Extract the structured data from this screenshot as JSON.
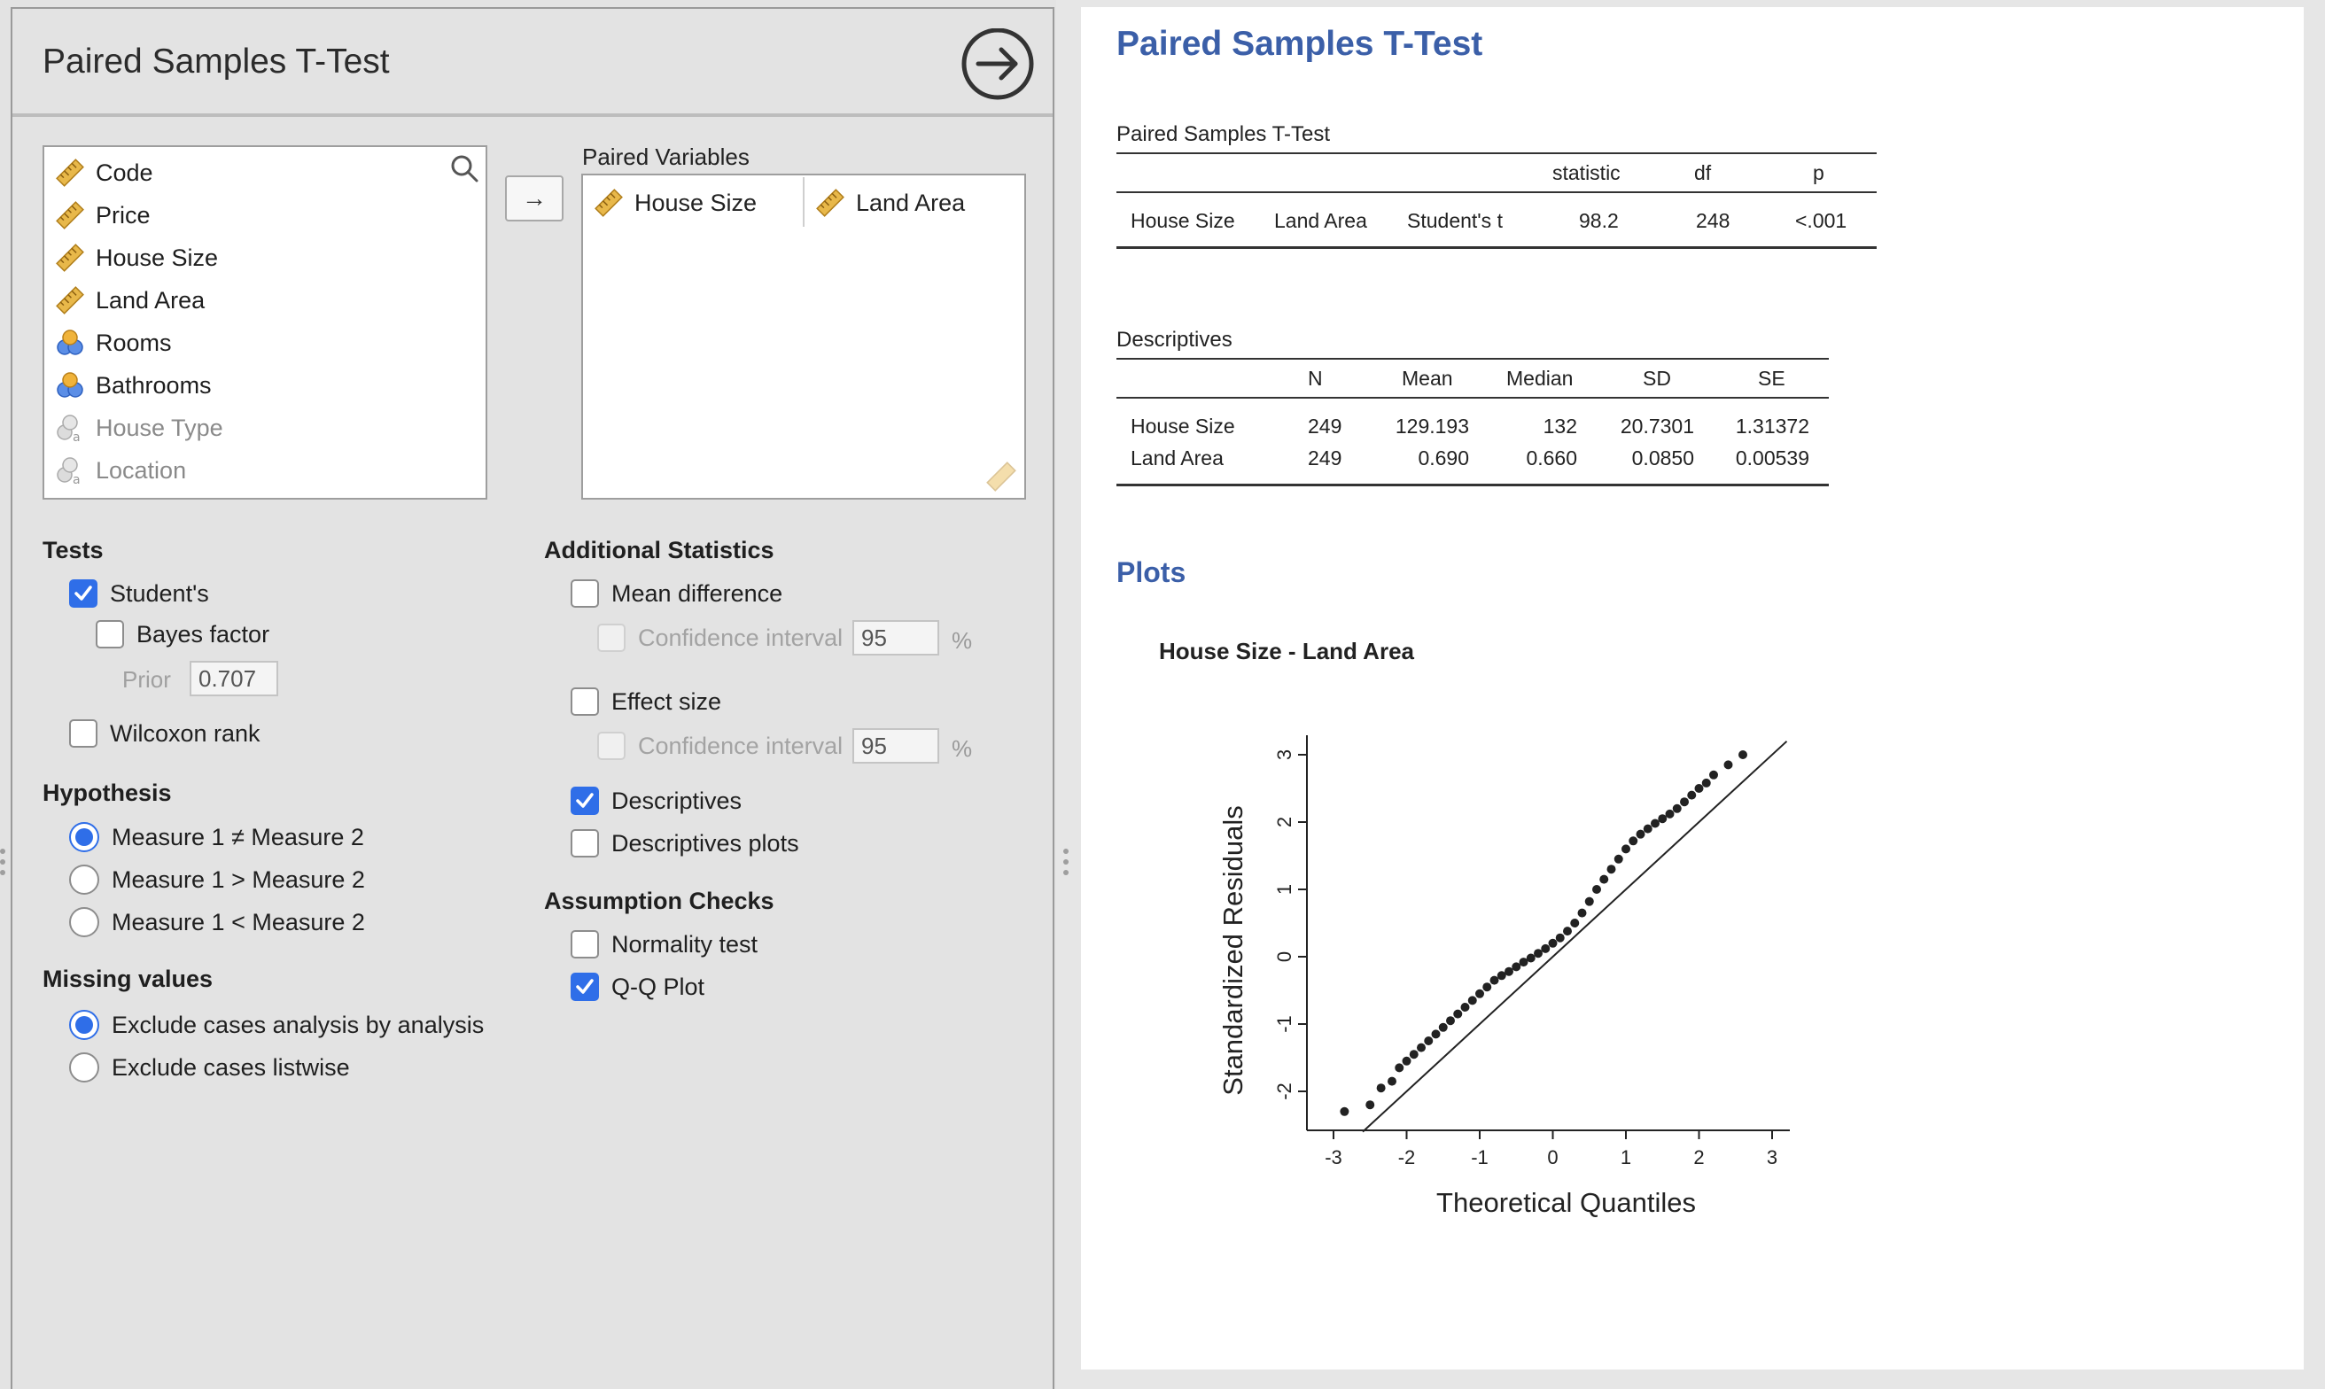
{
  "left_panel": {
    "title": "Paired Samples T-Test",
    "variables": [
      {
        "label": "Code",
        "icon": "ruler-icon",
        "dim": false
      },
      {
        "label": "Price",
        "icon": "ruler-icon",
        "dim": false
      },
      {
        "label": "House Size",
        "icon": "ruler-icon",
        "dim": false
      },
      {
        "label": "Land Area",
        "icon": "ruler-icon",
        "dim": false
      },
      {
        "label": "Rooms",
        "icon": "ordinal-icon",
        "dim": false
      },
      {
        "label": "Bathrooms",
        "icon": "ordinal-icon",
        "dim": false
      },
      {
        "label": "House Type",
        "icon": "nominal-text-icon",
        "dim": true
      },
      {
        "label": "Location",
        "icon": "nominal-text-icon",
        "dim": true
      }
    ],
    "move_button_label": "→",
    "paired_variables_label": "Paired Variables",
    "paired_variables": [
      "House Size",
      "Land Area"
    ],
    "tests": {
      "heading": "Tests",
      "students": "Student's",
      "bayes_factor": "Bayes factor",
      "prior_label": "Prior",
      "prior_value": "0.707",
      "wilcoxon": "Wilcoxon rank"
    },
    "hypothesis": {
      "heading": "Hypothesis",
      "options": [
        "Measure 1 ≠ Measure 2",
        "Measure 1 > Measure 2",
        "Measure 1 < Measure 2"
      ]
    },
    "missing_values": {
      "heading": "Missing values",
      "options": [
        "Exclude cases analysis by analysis",
        "Exclude cases listwise"
      ]
    },
    "additional_statistics": {
      "heading": "Additional Statistics",
      "mean_difference": "Mean difference",
      "confidence_interval": "Confidence interval",
      "ci_value_1": "95",
      "effect_size": "Effect size",
      "ci_value_2": "95",
      "percent": "%",
      "descriptives": "Descriptives",
      "descriptives_plots": "Descriptives plots"
    },
    "assumption_checks": {
      "heading": "Assumption Checks",
      "normality": "Normality test",
      "qq_plot": "Q-Q Plot"
    }
  },
  "results": {
    "title": "Paired Samples T-Test",
    "ttest_table": {
      "caption": "Paired Samples T-Test",
      "headers": [
        "statistic",
        "df",
        "p"
      ],
      "row": {
        "var1": "House Size",
        "var2": "Land Area",
        "test": "Student's t",
        "statistic": "98.2",
        "df": "248",
        "p": "<.001"
      }
    },
    "descriptives_table": {
      "caption": "Descriptives",
      "headers": [
        "N",
        "Mean",
        "Median",
        "SD",
        "SE"
      ],
      "rows": [
        {
          "name": "House Size",
          "N": "249",
          "mean": "129.193",
          "median": "132",
          "sd": "20.7301",
          "se": "1.31372"
        },
        {
          "name": "Land Area",
          "N": "249",
          "mean": "0.690",
          "median": "0.660",
          "sd": "0.0850",
          "se": "0.00539"
        }
      ]
    },
    "plots_heading": "Plots",
    "plot_title": "House Size - Land Area"
  },
  "chart_data": {
    "type": "scatter",
    "title": "House Size - Land Area",
    "xlabel": "Theoretical Quantiles",
    "ylabel": "Standardized Residuals",
    "xlim": [
      -3,
      3
    ],
    "ylim": [
      -2.5,
      3.2
    ],
    "xticks": [
      "-3",
      "-2",
      "-1",
      "0",
      "1",
      "2",
      "3"
    ],
    "yticks": [
      "-2",
      "-1",
      "0",
      "1",
      "2",
      "3"
    ],
    "reference_line": {
      "from": [
        -2.6,
        -2.6
      ],
      "to": [
        3.2,
        3.2
      ]
    },
    "points": [
      [
        -2.85,
        -2.3
      ],
      [
        -2.5,
        -2.2
      ],
      [
        -2.35,
        -1.95
      ],
      [
        -2.2,
        -1.85
      ],
      [
        -2.1,
        -1.65
      ],
      [
        -2.0,
        -1.55
      ],
      [
        -1.9,
        -1.45
      ],
      [
        -1.8,
        -1.35
      ],
      [
        -1.7,
        -1.25
      ],
      [
        -1.6,
        -1.15
      ],
      [
        -1.5,
        -1.05
      ],
      [
        -1.4,
        -0.95
      ],
      [
        -1.3,
        -0.85
      ],
      [
        -1.2,
        -0.75
      ],
      [
        -1.1,
        -0.65
      ],
      [
        -1.0,
        -0.55
      ],
      [
        -0.9,
        -0.45
      ],
      [
        -0.8,
        -0.35
      ],
      [
        -0.7,
        -0.28
      ],
      [
        -0.6,
        -0.22
      ],
      [
        -0.5,
        -0.15
      ],
      [
        -0.4,
        -0.08
      ],
      [
        -0.3,
        -0.02
      ],
      [
        -0.2,
        0.05
      ],
      [
        -0.1,
        0.12
      ],
      [
        0.0,
        0.2
      ],
      [
        0.1,
        0.28
      ],
      [
        0.2,
        0.38
      ],
      [
        0.3,
        0.5
      ],
      [
        0.4,
        0.65
      ],
      [
        0.5,
        0.82
      ],
      [
        0.6,
        1.0
      ],
      [
        0.7,
        1.15
      ],
      [
        0.8,
        1.3
      ],
      [
        0.9,
        1.45
      ],
      [
        1.0,
        1.6
      ],
      [
        1.1,
        1.72
      ],
      [
        1.2,
        1.82
      ],
      [
        1.3,
        1.9
      ],
      [
        1.4,
        1.98
      ],
      [
        1.5,
        2.05
      ],
      [
        1.6,
        2.12
      ],
      [
        1.7,
        2.2
      ],
      [
        1.8,
        2.3
      ],
      [
        1.9,
        2.4
      ],
      [
        2.0,
        2.5
      ],
      [
        2.1,
        2.58
      ],
      [
        2.2,
        2.7
      ],
      [
        2.4,
        2.85
      ],
      [
        2.6,
        3.0
      ]
    ]
  }
}
